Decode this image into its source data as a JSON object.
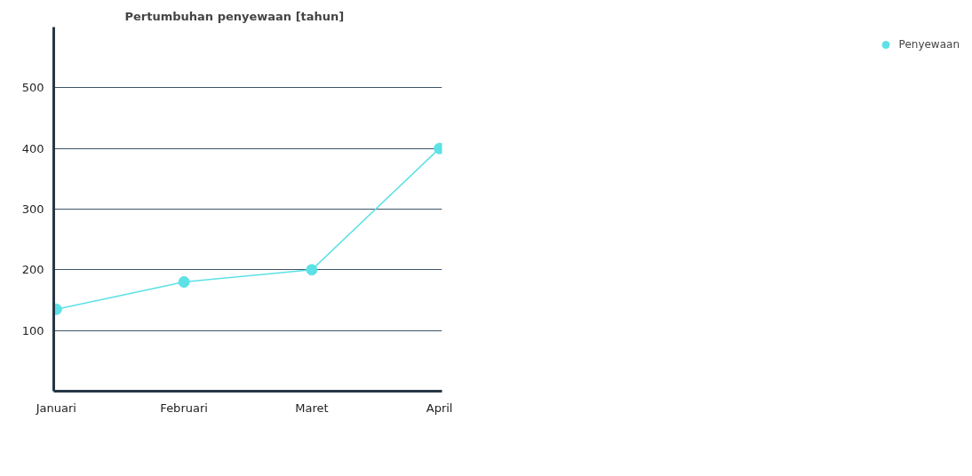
{
  "chart_data": {
    "type": "line",
    "title": "Pertumbuhan penyewaan [tahun]",
    "categories": [
      "Januari",
      "Februari",
      "Maret",
      "April"
    ],
    "series": [
      {
        "name": "Penyewaan",
        "color": "#5ce1e6",
        "values": [
          135,
          180,
          200,
          400
        ]
      }
    ],
    "ylim": [
      0,
      600
    ],
    "yticks": [
      100,
      200,
      300,
      400,
      500
    ],
    "grid": "y",
    "legend": "right",
    "marker": "circle",
    "line_style": "solid"
  }
}
